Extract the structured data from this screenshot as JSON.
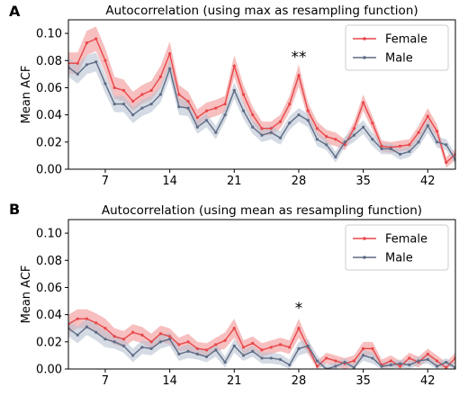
{
  "chart_data": [
    {
      "panel_label": "A",
      "type": "line",
      "title": "Autocorrelation (using max as resampling function)",
      "xlabel": "",
      "ylabel": "Mean ACF",
      "xlim": [
        3,
        45
      ],
      "ylim": [
        0.0,
        0.11
      ],
      "xticks": [
        7,
        14,
        21,
        28,
        35,
        42
      ],
      "yticks": [
        0.0,
        0.02,
        0.04,
        0.06,
        0.08,
        0.1
      ],
      "ytick_labels": [
        "0.00",
        "0.02",
        "0.04",
        "0.06",
        "0.08",
        "0.10"
      ],
      "grid": false,
      "legend": "top-right",
      "annotation": {
        "text": "**",
        "x": 28,
        "y": 0.079
      },
      "x": [
        3,
        4,
        5,
        6,
        7,
        8,
        9,
        10,
        11,
        12,
        13,
        14,
        15,
        16,
        17,
        18,
        19,
        20,
        21,
        22,
        23,
        24,
        25,
        26,
        27,
        28,
        29,
        30,
        31,
        32,
        33,
        34,
        35,
        36,
        37,
        38,
        39,
        40,
        41,
        42,
        43,
        44,
        45
      ],
      "series": [
        {
          "name": "Female",
          "color": "#e8474a",
          "band_color": "#f4a9aa",
          "values": [
            0.078,
            0.078,
            0.093,
            0.096,
            0.08,
            0.06,
            0.058,
            0.05,
            0.055,
            0.058,
            0.068,
            0.085,
            0.055,
            0.05,
            0.038,
            0.043,
            0.045,
            0.048,
            0.076,
            0.055,
            0.04,
            0.03,
            0.03,
            0.035,
            0.048,
            0.069,
            0.043,
            0.03,
            0.024,
            0.022,
            0.018,
            0.03,
            0.049,
            0.034,
            0.017,
            0.016,
            0.017,
            0.018,
            0.027,
            0.039,
            0.028,
            0.005,
            0.011
          ],
          "band": [
            0.008,
            0.008,
            0.009,
            0.009,
            0.009,
            0.008,
            0.008,
            0.007,
            0.007,
            0.007,
            0.008,
            0.009,
            0.007,
            0.007,
            0.006,
            0.006,
            0.006,
            0.006,
            0.008,
            0.007,
            0.006,
            0.005,
            0.005,
            0.005,
            0.006,
            0.008,
            0.006,
            0.005,
            0.005,
            0.005,
            0.004,
            0.005,
            0.006,
            0.005,
            0.004,
            0.004,
            0.004,
            0.004,
            0.005,
            0.006,
            0.005,
            0.004,
            0.004
          ]
        },
        {
          "name": "Male",
          "color": "#5e6c85",
          "band_color": "#b9c3d2",
          "values": [
            0.075,
            0.07,
            0.077,
            0.079,
            0.063,
            0.048,
            0.048,
            0.04,
            0.045,
            0.048,
            0.055,
            0.074,
            0.046,
            0.045,
            0.031,
            0.036,
            0.027,
            0.04,
            0.058,
            0.043,
            0.031,
            0.025,
            0.027,
            0.023,
            0.034,
            0.04,
            0.036,
            0.022,
            0.018,
            0.009,
            0.02,
            0.025,
            0.031,
            0.022,
            0.015,
            0.015,
            0.011,
            0.013,
            0.02,
            0.032,
            0.02,
            0.018,
            0.007
          ],
          "band": [
            0.007,
            0.007,
            0.007,
            0.007,
            0.007,
            0.006,
            0.006,
            0.006,
            0.006,
            0.006,
            0.006,
            0.007,
            0.006,
            0.006,
            0.005,
            0.005,
            0.005,
            0.005,
            0.006,
            0.006,
            0.005,
            0.005,
            0.005,
            0.005,
            0.005,
            0.005,
            0.005,
            0.005,
            0.004,
            0.004,
            0.004,
            0.005,
            0.005,
            0.005,
            0.004,
            0.004,
            0.004,
            0.004,
            0.004,
            0.005,
            0.004,
            0.004,
            0.004
          ]
        }
      ]
    },
    {
      "panel_label": "B",
      "type": "line",
      "title": "Autocorrelation (using mean as resampling function)",
      "xlabel": "",
      "ylabel": "Mean ACF",
      "xlim": [
        3,
        45
      ],
      "ylim": [
        0.0,
        0.11
      ],
      "xticks": [
        7,
        14,
        21,
        28,
        35,
        42
      ],
      "yticks": [
        0.0,
        0.02,
        0.04,
        0.06,
        0.08,
        0.1
      ],
      "ytick_labels": [
        "0.00",
        "0.02",
        "0.04",
        "0.06",
        "0.08",
        "0.10"
      ],
      "grid": false,
      "legend": "top-right",
      "annotation": {
        "text": "*",
        "x": 28,
        "y": 0.041
      },
      "x": [
        3,
        4,
        5,
        6,
        7,
        8,
        9,
        10,
        11,
        12,
        13,
        14,
        15,
        16,
        17,
        18,
        19,
        20,
        21,
        22,
        23,
        24,
        25,
        26,
        27,
        28,
        29,
        30,
        31,
        32,
        33,
        34,
        35,
        36,
        37,
        38,
        39,
        40,
        41,
        42,
        43,
        44,
        45
      ],
      "series": [
        {
          "name": "Female",
          "color": "#e8474a",
          "band_color": "#f4a9aa",
          "values": [
            0.033,
            0.037,
            0.037,
            0.034,
            0.03,
            0.024,
            0.022,
            0.027,
            0.025,
            0.02,
            0.026,
            0.024,
            0.018,
            0.02,
            0.015,
            0.014,
            0.018,
            0.021,
            0.03,
            0.016,
            0.019,
            0.014,
            0.016,
            0.018,
            0.016,
            0.03,
            0.016,
            0.002,
            0.008,
            0.006,
            0.004,
            0.006,
            0.015,
            0.015,
            0.003,
            0.006,
            0.002,
            0.008,
            0.005,
            0.011,
            0.006,
            0.001,
            0.008
          ],
          "band": [
            0.007,
            0.007,
            0.007,
            0.007,
            0.007,
            0.006,
            0.006,
            0.006,
            0.006,
            0.006,
            0.006,
            0.006,
            0.005,
            0.006,
            0.005,
            0.005,
            0.005,
            0.006,
            0.007,
            0.005,
            0.005,
            0.005,
            0.005,
            0.005,
            0.005,
            0.007,
            0.005,
            0.004,
            0.004,
            0.004,
            0.004,
            0.004,
            0.005,
            0.005,
            0.004,
            0.004,
            0.004,
            0.004,
            0.004,
            0.004,
            0.004,
            0.004,
            0.004
          ]
        },
        {
          "name": "Male",
          "color": "#5e6c85",
          "band_color": "#b9c3d2",
          "values": [
            0.03,
            0.025,
            0.031,
            0.027,
            0.022,
            0.02,
            0.017,
            0.01,
            0.016,
            0.015,
            0.02,
            0.022,
            0.011,
            0.013,
            0.011,
            0.009,
            0.014,
            0.005,
            0.017,
            0.01,
            0.013,
            0.008,
            0.008,
            0.007,
            0.003,
            0.015,
            0.017,
            0.006,
            0.0,
            0.002,
            0.005,
            0.001,
            0.01,
            0.008,
            0.002,
            0.003,
            0.004,
            0.003,
            0.006,
            0.007,
            0.002,
            0.005,
            0.001
          ],
          "band": [
            0.006,
            0.006,
            0.006,
            0.006,
            0.006,
            0.005,
            0.005,
            0.005,
            0.005,
            0.005,
            0.005,
            0.005,
            0.005,
            0.005,
            0.004,
            0.004,
            0.005,
            0.004,
            0.005,
            0.004,
            0.004,
            0.004,
            0.004,
            0.004,
            0.004,
            0.005,
            0.005,
            0.004,
            0.003,
            0.003,
            0.003,
            0.003,
            0.004,
            0.004,
            0.003,
            0.003,
            0.003,
            0.003,
            0.003,
            0.003,
            0.003,
            0.003,
            0.003
          ]
        }
      ]
    }
  ]
}
